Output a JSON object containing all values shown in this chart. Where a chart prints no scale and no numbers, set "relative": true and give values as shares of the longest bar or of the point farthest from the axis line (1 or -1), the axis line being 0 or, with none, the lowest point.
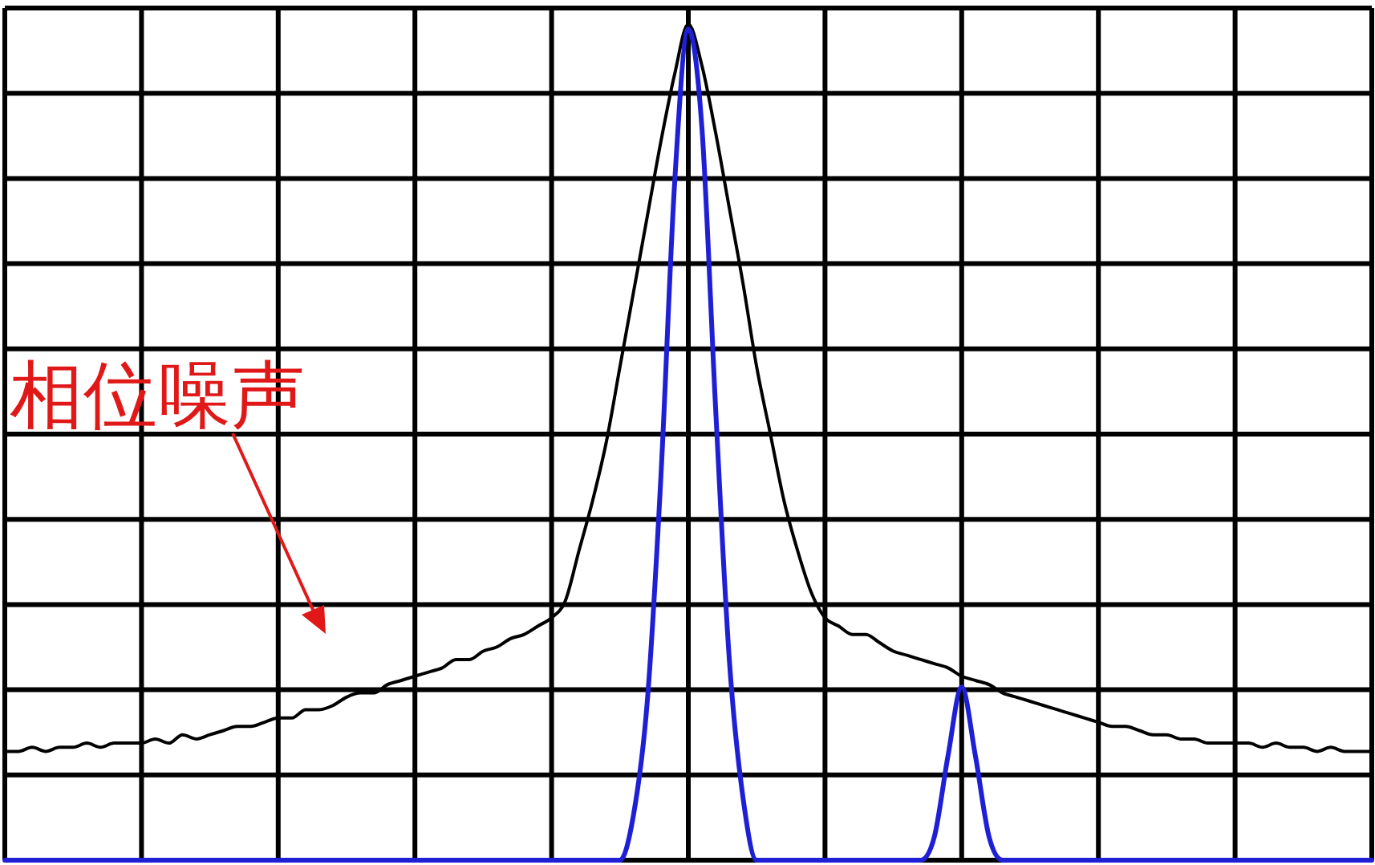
{
  "chart_data": {
    "type": "line",
    "relative": true,
    "grid": true,
    "categories": [
      null,
      null,
      null,
      null,
      null,
      null,
      null,
      null,
      null,
      null,
      null,
      null,
      null,
      null,
      null,
      null,
      null,
      null,
      null,
      null,
      null,
      null,
      null,
      null,
      null,
      null,
      null,
      null,
      null,
      null,
      null,
      null,
      null,
      null,
      null,
      null,
      null,
      null,
      null,
      null,
      null,
      null,
      null,
      null,
      null,
      null,
      null,
      null,
      null,
      null,
      null,
      null,
      null,
      null,
      null,
      null,
      null,
      null,
      null,
      null,
      null,
      null,
      null,
      null,
      null,
      null,
      null,
      null,
      null,
      null,
      null,
      null,
      null,
      null,
      null,
      null,
      null,
      null,
      null,
      null,
      null,
      null,
      null,
      null,
      null,
      null,
      null,
      null,
      null,
      null,
      null,
      null,
      null,
      null,
      null,
      null,
      null,
      null,
      null,
      null,
      null
    ],
    "annotations": [
      "相位噪声"
    ],
    "series": [
      {
        "color": "#000000",
        "values": [
          0.13,
          0.13,
          0.135,
          0.13,
          0.135,
          0.135,
          0.14,
          0.135,
          0.14,
          0.14,
          0.14,
          0.145,
          0.14,
          0.15,
          0.145,
          0.15,
          0.155,
          0.16,
          0.16,
          0.165,
          0.17,
          0.17,
          0.18,
          0.18,
          0.185,
          0.195,
          0.2,
          0.2,
          0.21,
          0.215,
          0.22,
          0.225,
          0.23,
          0.24,
          0.24,
          0.25,
          0.255,
          0.265,
          0.27,
          0.28,
          0.29,
          0.31,
          0.37,
          0.43,
          0.5,
          0.59,
          0.68,
          0.77,
          0.86,
          0.94,
          1.0,
          0.95,
          0.87,
          0.78,
          0.69,
          0.59,
          0.51,
          0.43,
          0.37,
          0.32,
          0.29,
          0.28,
          0.27,
          0.27,
          0.26,
          0.25,
          0.245,
          0.24,
          0.235,
          0.23,
          0.22,
          0.215,
          0.21,
          0.2,
          0.195,
          0.19,
          0.185,
          0.18,
          0.175,
          0.17,
          0.165,
          0.16,
          0.16,
          0.155,
          0.15,
          0.15,
          0.145,
          0.145,
          0.14,
          0.14,
          0.14,
          0.14,
          0.135,
          0.14,
          0.135,
          0.135,
          0.13,
          0.135,
          0.13,
          0.13,
          0.13
        ]
      },
      {
        "color": "#1f1fd6",
        "values": [
          0,
          0,
          0,
          0,
          0,
          0,
          0,
          0,
          0,
          0,
          0,
          0,
          0,
          0,
          0,
          0,
          0,
          0,
          0,
          0,
          0,
          0,
          0,
          0,
          0,
          0,
          0,
          0,
          0,
          0,
          0,
          0,
          0,
          0,
          0,
          0,
          0,
          0,
          0,
          0,
          0,
          0,
          0,
          0,
          0,
          0,
          0.055,
          0.19,
          0.46,
          0.81,
          0.994,
          0.875,
          0.54,
          0.24,
          0.075,
          0,
          0,
          0,
          0,
          0,
          0,
          0,
          0,
          0,
          0,
          0,
          0,
          0,
          0.028,
          0.125,
          0.207,
          0.125,
          0.028,
          0,
          0,
          0,
          0,
          0,
          0,
          0,
          0,
          0,
          0,
          0,
          0,
          0,
          0,
          0,
          0,
          0,
          0,
          0,
          0,
          0,
          0,
          0,
          0,
          0,
          0,
          0,
          0
        ]
      }
    ]
  }
}
